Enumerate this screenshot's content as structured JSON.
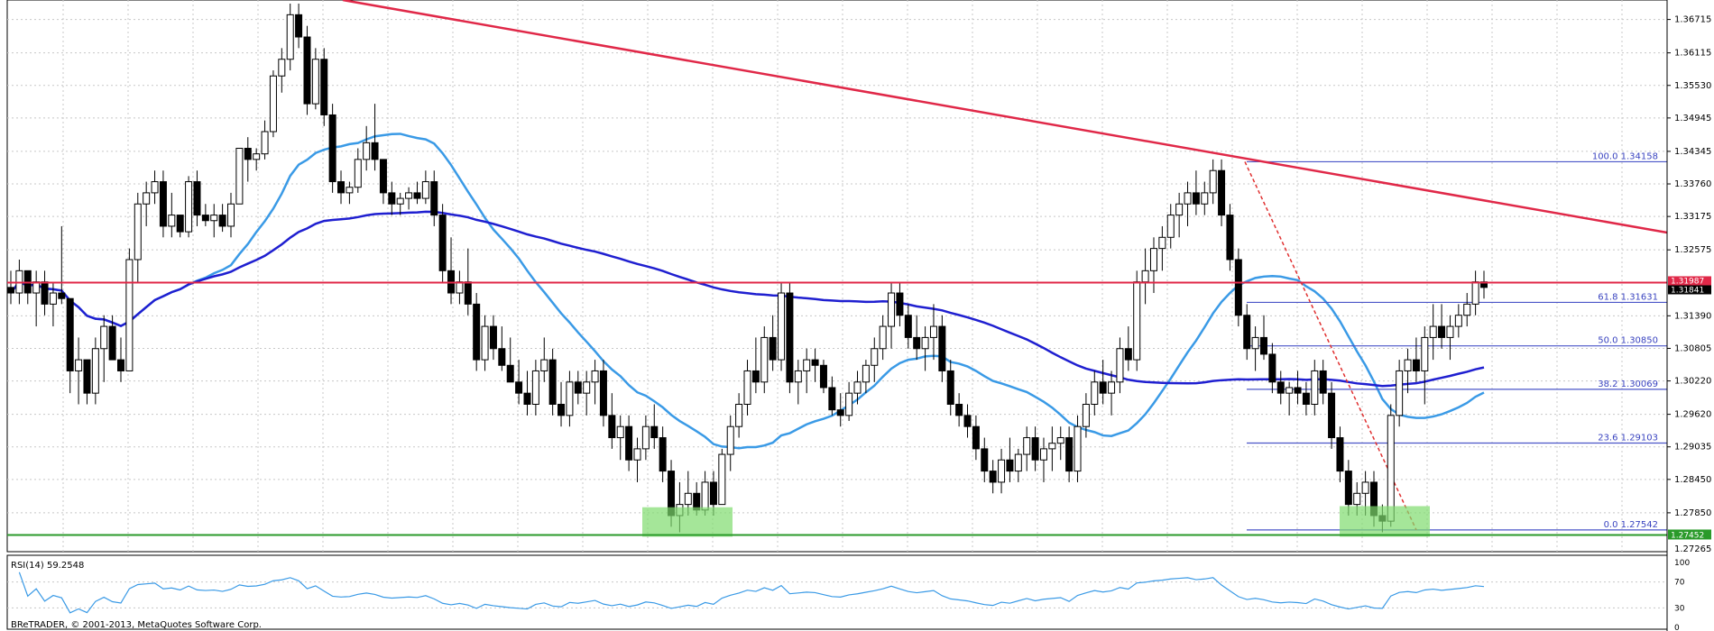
{
  "chart_data": {
    "type": "candlestick",
    "price_axis": {
      "ticks": [
        "1.36715",
        "1.36115",
        "1.35530",
        "1.34945",
        "1.34345",
        "1.33760",
        "1.33175",
        "1.32575",
        "1.31390",
        "1.30805",
        "1.30220",
        "1.29620",
        "1.29035",
        "1.28450",
        "1.27850"
      ],
      "min": 1.27265,
      "max": 1.37,
      "current_price": "1.31987",
      "current_price_bottom": "1.31841",
      "bottom_label": "1.27265",
      "support_label": "1.27452"
    },
    "fibonacci": [
      {
        "label": "100.0 1.34158",
        "level": 1.34158
      },
      {
        "label": "61.8 1.31631",
        "level": 1.31631
      },
      {
        "label": "50.0 1.30850",
        "level": 1.3085
      },
      {
        "label": "38.2 1.30069",
        "level": 1.30069
      },
      {
        "label": "23.6 1.29103",
        "level": 1.29103
      },
      {
        "label": "0.0 1.27542",
        "level": 1.27542
      }
    ],
    "lines": {
      "horizontal_resistance": 1.31987,
      "horizontal_support": 1.27452
    },
    "ohlc": [
      [
        1.319,
        1.322,
        1.316,
        1.318
      ],
      [
        1.318,
        1.324,
        1.316,
        1.322
      ],
      [
        1.322,
        1.322,
        1.316,
        1.318
      ],
      [
        1.318,
        1.322,
        1.312,
        1.32
      ],
      [
        1.32,
        1.322,
        1.314,
        1.316
      ],
      [
        1.316,
        1.32,
        1.312,
        1.318
      ],
      [
        1.318,
        1.33,
        1.316,
        1.317
      ],
      [
        1.317,
        1.317,
        1.3,
        1.304
      ],
      [
        1.304,
        1.31,
        1.298,
        1.306
      ],
      [
        1.306,
        1.306,
        1.298,
        1.3
      ],
      [
        1.3,
        1.31,
        1.298,
        1.308
      ],
      [
        1.308,
        1.314,
        1.302,
        1.312
      ],
      [
        1.312,
        1.314,
        1.306,
        1.306
      ],
      [
        1.306,
        1.31,
        1.302,
        1.304
      ],
      [
        1.304,
        1.326,
        1.304,
        1.324
      ],
      [
        1.324,
        1.336,
        1.32,
        1.334
      ],
      [
        1.334,
        1.338,
        1.33,
        1.336
      ],
      [
        1.336,
        1.34,
        1.334,
        1.338
      ],
      [
        1.338,
        1.34,
        1.328,
        1.33
      ],
      [
        1.33,
        1.336,
        1.328,
        1.332
      ],
      [
        1.332,
        1.332,
        1.328,
        1.329
      ],
      [
        1.329,
        1.339,
        1.328,
        1.338
      ],
      [
        1.338,
        1.34,
        1.33,
        1.332
      ],
      [
        1.332,
        1.334,
        1.33,
        1.331
      ],
      [
        1.331,
        1.334,
        1.328,
        1.332
      ],
      [
        1.332,
        1.334,
        1.329,
        1.33
      ],
      [
        1.33,
        1.336,
        1.328,
        1.334
      ],
      [
        1.334,
        1.344,
        1.334,
        1.344
      ],
      [
        1.344,
        1.346,
        1.338,
        1.342
      ],
      [
        1.342,
        1.344,
        1.34,
        1.343
      ],
      [
        1.343,
        1.349,
        1.342,
        1.347
      ],
      [
        1.347,
        1.358,
        1.346,
        1.357
      ],
      [
        1.357,
        1.362,
        1.354,
        1.36
      ],
      [
        1.36,
        1.37,
        1.358,
        1.368
      ],
      [
        1.368,
        1.37,
        1.362,
        1.364
      ],
      [
        1.364,
        1.366,
        1.35,
        1.352
      ],
      [
        1.352,
        1.362,
        1.351,
        1.36
      ],
      [
        1.36,
        1.362,
        1.348,
        1.35
      ],
      [
        1.35,
        1.352,
        1.336,
        1.338
      ],
      [
        1.338,
        1.34,
        1.334,
        1.336
      ],
      [
        1.336,
        1.338,
        1.334,
        1.337
      ],
      [
        1.337,
        1.344,
        1.336,
        1.342
      ],
      [
        1.342,
        1.348,
        1.34,
        1.345
      ],
      [
        1.345,
        1.352,
        1.34,
        1.342
      ],
      [
        1.342,
        1.342,
        1.334,
        1.336
      ],
      [
        1.336,
        1.338,
        1.332,
        1.334
      ],
      [
        1.334,
        1.336,
        1.332,
        1.335
      ],
      [
        1.335,
        1.337,
        1.333,
        1.336
      ],
      [
        1.336,
        1.338,
        1.334,
        1.335
      ],
      [
        1.335,
        1.34,
        1.334,
        1.338
      ],
      [
        1.338,
        1.34,
        1.33,
        1.332
      ],
      [
        1.332,
        1.334,
        1.32,
        1.322
      ],
      [
        1.322,
        1.328,
        1.316,
        1.318
      ],
      [
        1.318,
        1.322,
        1.316,
        1.32
      ],
      [
        1.32,
        1.326,
        1.314,
        1.316
      ],
      [
        1.316,
        1.318,
        1.304,
        1.306
      ],
      [
        1.306,
        1.314,
        1.304,
        1.312
      ],
      [
        1.312,
        1.314,
        1.306,
        1.308
      ],
      [
        1.308,
        1.312,
        1.304,
        1.305
      ],
      [
        1.305,
        1.31,
        1.302,
        1.302
      ],
      [
        1.302,
        1.306,
        1.298,
        1.3
      ],
      [
        1.3,
        1.304,
        1.296,
        1.298
      ],
      [
        1.298,
        1.306,
        1.296,
        1.304
      ],
      [
        1.304,
        1.31,
        1.302,
        1.306
      ],
      [
        1.306,
        1.308,
        1.296,
        1.298
      ],
      [
        1.298,
        1.302,
        1.294,
        1.296
      ],
      [
        1.296,
        1.304,
        1.294,
        1.302
      ],
      [
        1.302,
        1.304,
        1.298,
        1.3
      ],
      [
        1.3,
        1.304,
        1.296,
        1.302
      ],
      [
        1.302,
        1.306,
        1.298,
        1.304
      ],
      [
        1.304,
        1.306,
        1.294,
        1.296
      ],
      [
        1.296,
        1.3,
        1.29,
        1.292
      ],
      [
        1.292,
        1.296,
        1.288,
        1.294
      ],
      [
        1.294,
        1.296,
        1.286,
        1.288
      ],
      [
        1.288,
        1.292,
        1.284,
        1.29
      ],
      [
        1.29,
        1.296,
        1.288,
        1.294
      ],
      [
        1.294,
        1.298,
        1.29,
        1.292
      ],
      [
        1.292,
        1.294,
        1.284,
        1.286
      ],
      [
        1.286,
        1.288,
        1.276,
        1.278
      ],
      [
        1.278,
        1.284,
        1.275,
        1.28
      ],
      [
        1.28,
        1.286,
        1.278,
        1.282
      ],
      [
        1.282,
        1.284,
        1.278,
        1.279
      ],
      [
        1.279,
        1.286,
        1.278,
        1.284
      ],
      [
        1.284,
        1.286,
        1.278,
        1.28
      ],
      [
        1.28,
        1.29,
        1.28,
        1.289
      ],
      [
        1.289,
        1.296,
        1.286,
        1.294
      ],
      [
        1.294,
        1.3,
        1.292,
        1.298
      ],
      [
        1.298,
        1.306,
        1.296,
        1.304
      ],
      [
        1.304,
        1.31,
        1.3,
        1.302
      ],
      [
        1.302,
        1.312,
        1.3,
        1.31
      ],
      [
        1.31,
        1.314,
        1.304,
        1.306
      ],
      [
        1.306,
        1.32,
        1.304,
        1.318
      ],
      [
        1.318,
        1.32,
        1.3,
        1.302
      ],
      [
        1.302,
        1.306,
        1.298,
        1.304
      ],
      [
        1.304,
        1.308,
        1.3,
        1.306
      ],
      [
        1.306,
        1.308,
        1.302,
        1.305
      ],
      [
        1.305,
        1.306,
        1.3,
        1.301
      ],
      [
        1.301,
        1.303,
        1.296,
        1.297
      ],
      [
        1.297,
        1.3,
        1.294,
        1.296
      ],
      [
        1.296,
        1.302,
        1.295,
        1.3
      ],
      [
        1.3,
        1.304,
        1.298,
        1.302
      ],
      [
        1.302,
        1.306,
        1.3,
        1.305
      ],
      [
        1.305,
        1.31,
        1.302,
        1.308
      ],
      [
        1.308,
        1.314,
        1.306,
        1.312
      ],
      [
        1.312,
        1.32,
        1.308,
        1.318
      ],
      [
        1.318,
        1.32,
        1.312,
        1.314
      ],
      [
        1.314,
        1.316,
        1.308,
        1.31
      ],
      [
        1.31,
        1.314,
        1.306,
        1.308
      ],
      [
        1.308,
        1.312,
        1.304,
        1.31
      ],
      [
        1.31,
        1.316,
        1.306,
        1.312
      ],
      [
        1.312,
        1.314,
        1.302,
        1.304
      ],
      [
        1.304,
        1.306,
        1.296,
        1.298
      ],
      [
        1.298,
        1.3,
        1.294,
        1.296
      ],
      [
        1.296,
        1.298,
        1.292,
        1.294
      ],
      [
        1.294,
        1.296,
        1.288,
        1.29
      ],
      [
        1.29,
        1.292,
        1.284,
        1.286
      ],
      [
        1.286,
        1.288,
        1.282,
        1.284
      ],
      [
        1.284,
        1.29,
        1.282,
        1.288
      ],
      [
        1.288,
        1.292,
        1.284,
        1.286
      ],
      [
        1.286,
        1.29,
        1.284,
        1.289
      ],
      [
        1.289,
        1.294,
        1.286,
        1.292
      ],
      [
        1.292,
        1.294,
        1.286,
        1.288
      ],
      [
        1.288,
        1.292,
        1.284,
        1.29
      ],
      [
        1.29,
        1.294,
        1.286,
        1.291
      ],
      [
        1.291,
        1.294,
        1.288,
        1.292
      ],
      [
        1.292,
        1.294,
        1.284,
        1.286
      ],
      [
        1.286,
        1.296,
        1.284,
        1.294
      ],
      [
        1.294,
        1.3,
        1.292,
        1.298
      ],
      [
        1.298,
        1.304,
        1.296,
        1.302
      ],
      [
        1.302,
        1.306,
        1.298,
        1.3
      ],
      [
        1.3,
        1.304,
        1.296,
        1.302
      ],
      [
        1.302,
        1.31,
        1.3,
        1.308
      ],
      [
        1.308,
        1.312,
        1.304,
        1.306
      ],
      [
        1.306,
        1.322,
        1.304,
        1.32
      ],
      [
        1.32,
        1.326,
        1.316,
        1.322
      ],
      [
        1.322,
        1.328,
        1.318,
        1.326
      ],
      [
        1.326,
        1.33,
        1.322,
        1.328
      ],
      [
        1.328,
        1.334,
        1.326,
        1.332
      ],
      [
        1.332,
        1.336,
        1.328,
        1.334
      ],
      [
        1.334,
        1.338,
        1.33,
        1.336
      ],
      [
        1.336,
        1.34,
        1.332,
        1.334
      ],
      [
        1.334,
        1.338,
        1.332,
        1.336
      ],
      [
        1.336,
        1.342,
        1.334,
        1.34
      ],
      [
        1.34,
        1.342,
        1.33,
        1.332
      ],
      [
        1.332,
        1.334,
        1.322,
        1.324
      ],
      [
        1.324,
        1.326,
        1.312,
        1.314
      ],
      [
        1.314,
        1.316,
        1.306,
        1.308
      ],
      [
        1.308,
        1.312,
        1.304,
        1.31
      ],
      [
        1.31,
        1.314,
        1.306,
        1.307
      ],
      [
        1.307,
        1.309,
        1.3,
        1.302
      ],
      [
        1.302,
        1.304,
        1.298,
        1.3
      ],
      [
        1.3,
        1.302,
        1.296,
        1.301
      ],
      [
        1.301,
        1.304,
        1.298,
        1.3
      ],
      [
        1.3,
        1.302,
        1.296,
        1.298
      ],
      [
        1.298,
        1.306,
        1.296,
        1.304
      ],
      [
        1.304,
        1.306,
        1.298,
        1.3
      ],
      [
        1.3,
        1.302,
        1.29,
        1.292
      ],
      [
        1.292,
        1.294,
        1.284,
        1.286
      ],
      [
        1.286,
        1.288,
        1.278,
        1.28
      ],
      [
        1.28,
        1.284,
        1.278,
        1.282
      ],
      [
        1.282,
        1.286,
        1.278,
        1.284
      ],
      [
        1.284,
        1.286,
        1.276,
        1.278
      ],
      [
        1.278,
        1.28,
        1.275,
        1.277
      ],
      [
        1.277,
        1.298,
        1.276,
        1.296
      ],
      [
        1.296,
        1.306,
        1.294,
        1.304
      ],
      [
        1.304,
        1.308,
        1.3,
        1.306
      ],
      [
        1.306,
        1.31,
        1.302,
        1.304
      ],
      [
        1.304,
        1.312,
        1.298,
        1.31
      ],
      [
        1.31,
        1.316,
        1.306,
        1.312
      ],
      [
        1.312,
        1.316,
        1.308,
        1.31
      ],
      [
        1.31,
        1.314,
        1.306,
        1.312
      ],
      [
        1.312,
        1.316,
        1.31,
        1.314
      ],
      [
        1.314,
        1.318,
        1.312,
        1.316
      ],
      [
        1.316,
        1.322,
        1.314,
        1.32
      ],
      [
        1.32,
        1.322,
        1.317,
        1.319
      ]
    ],
    "rsi": {
      "label": "RSI(14) 59.2548",
      "levels": [
        "100",
        "70",
        "30",
        "0"
      ]
    },
    "footer": "BReTRADER, © 2001-2013, MetaQuotes Software Corp."
  }
}
